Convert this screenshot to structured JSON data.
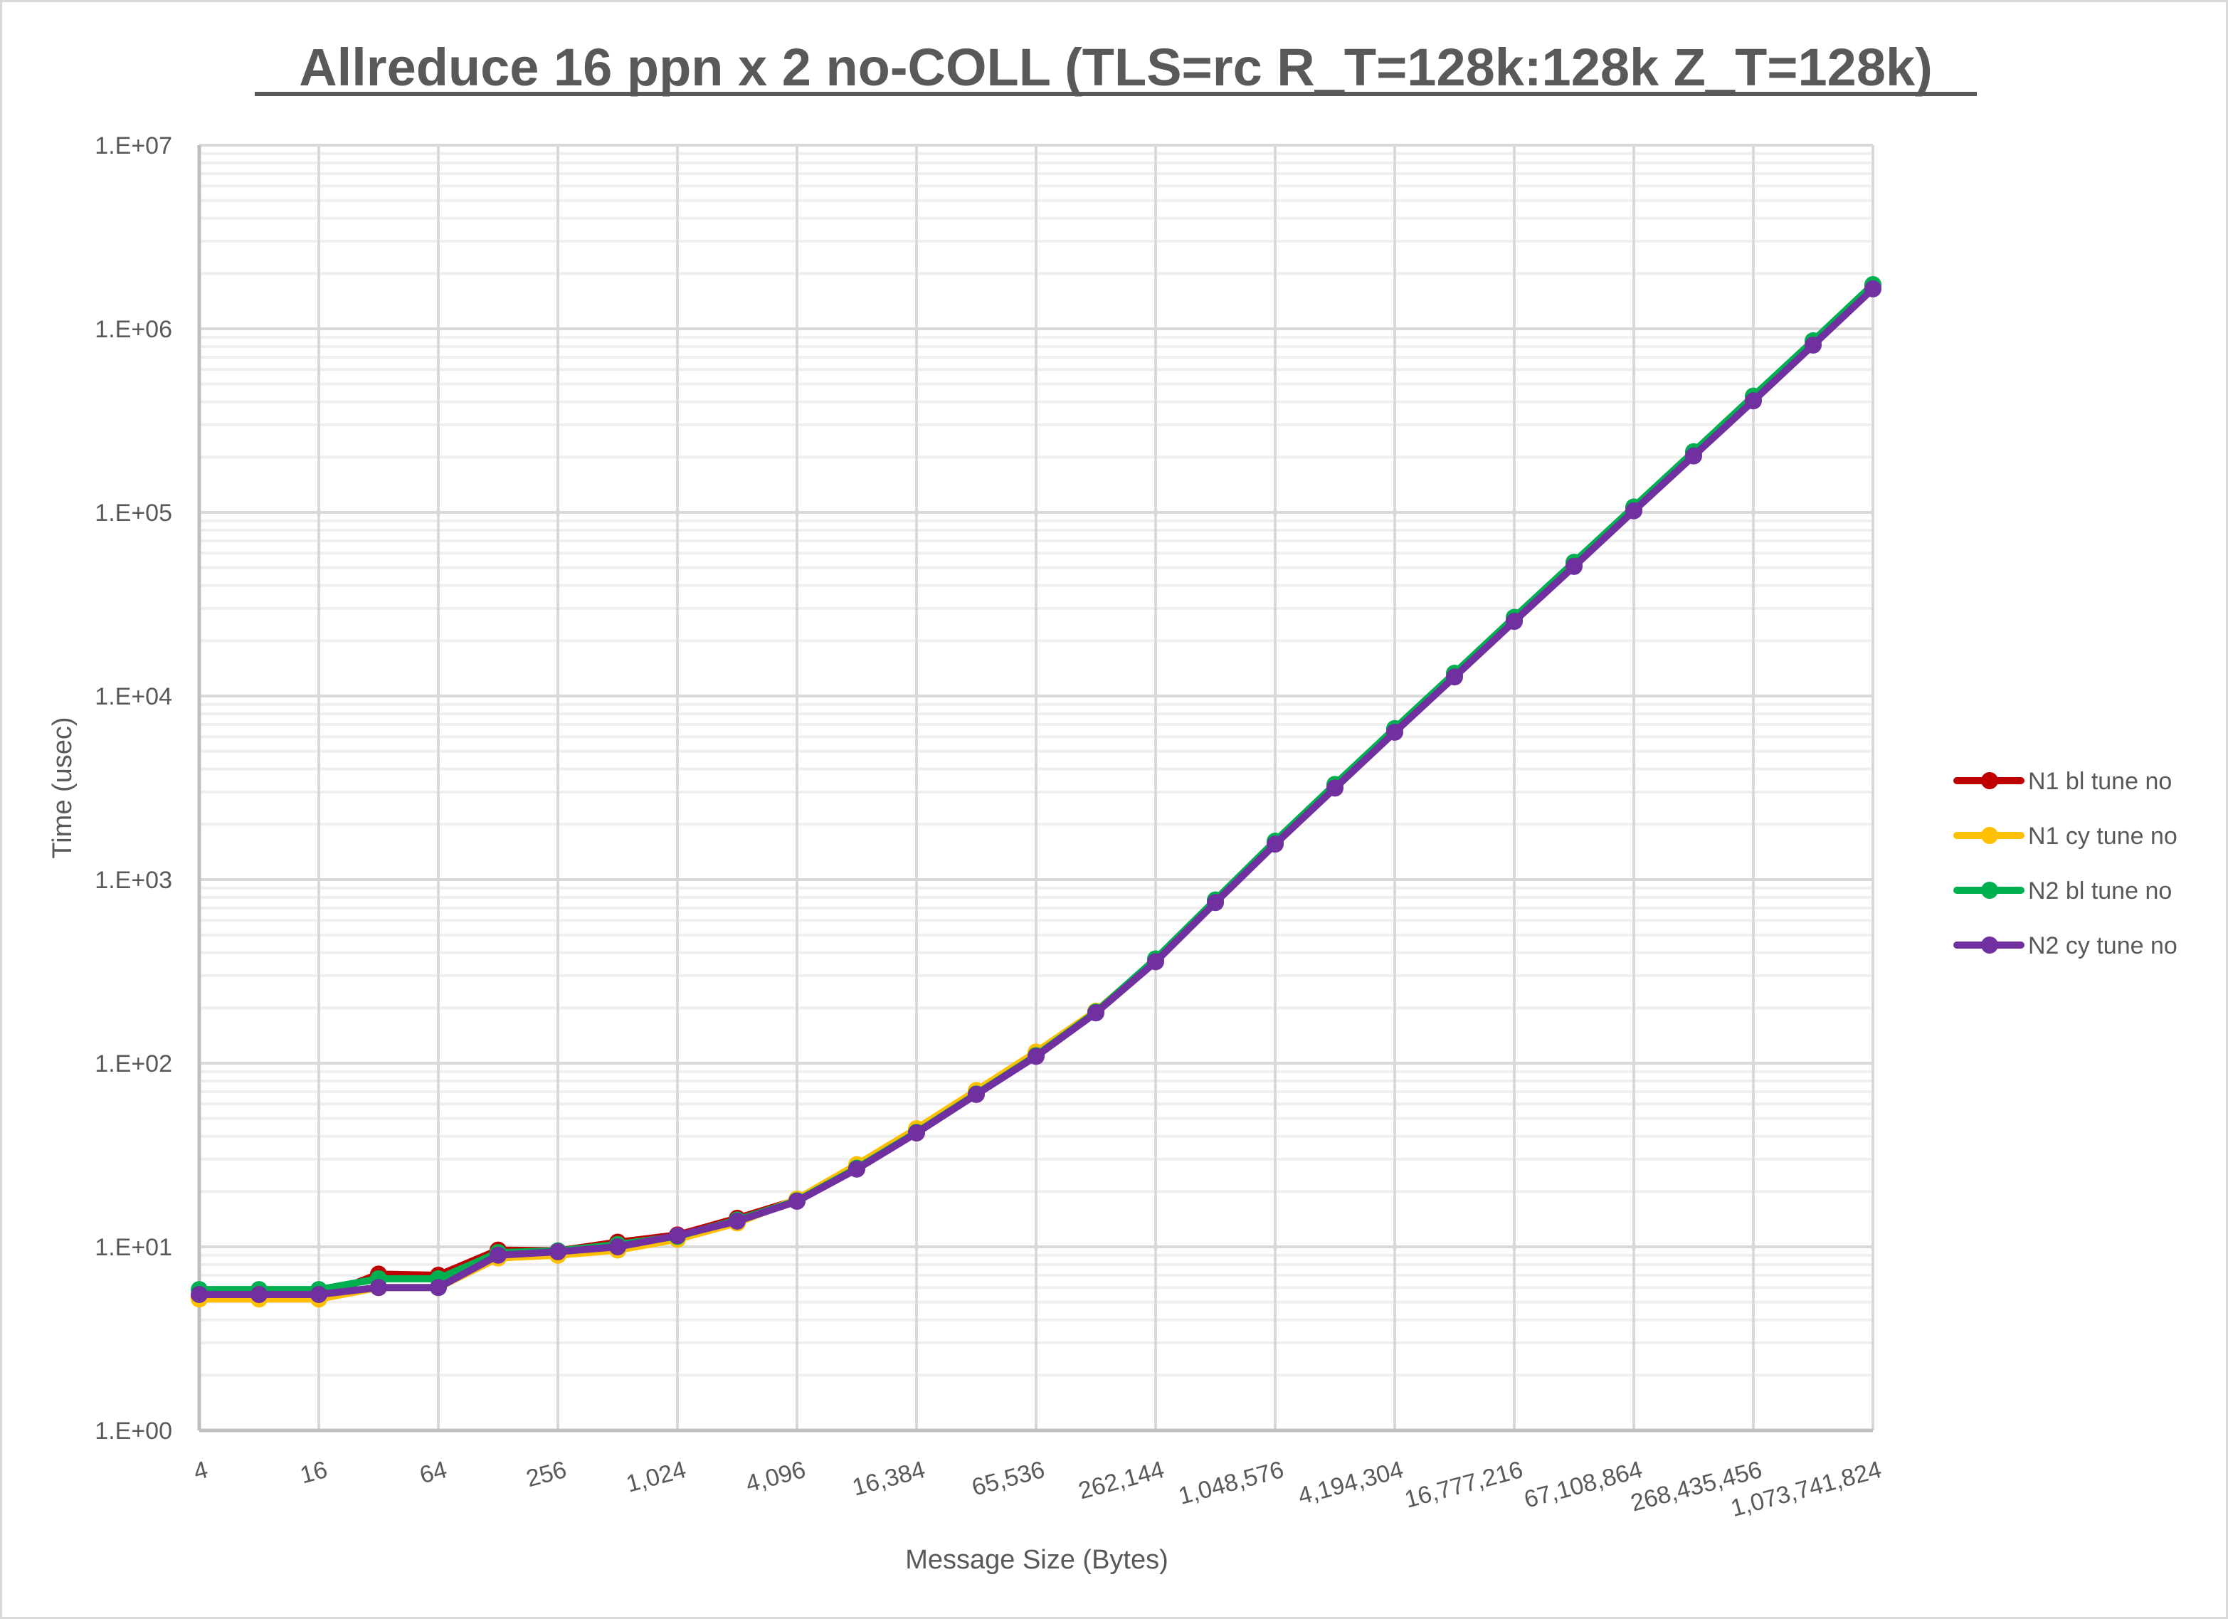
{
  "chart_data": {
    "type": "line",
    "title": "Allreduce 16 ppn x 2 no-COLL (TLS=rc R_T=128k:128k Z_T=128k)",
    "xlabel": "Message Size (Bytes)",
    "ylabel": "Time (usec)",
    "x_scale": "log2",
    "y_scale": "log10",
    "ylim": [
      1,
      10000000
    ],
    "grid": true,
    "legend_position": "right",
    "y_tick_labels": [
      "1.E+00",
      "1.E+01",
      "1.E+02",
      "1.E+03",
      "1.E+04",
      "1.E+05",
      "1.E+06",
      "1.E+07"
    ],
    "x_tick_labels": [
      "4",
      "16",
      "64",
      "256",
      "1,024",
      "4,096",
      "16,384",
      "65,536",
      "262,144",
      "1,048,576",
      "4,194,304",
      "16,777,216",
      "67,108,864",
      "268,435,456",
      "1,073,741,824"
    ],
    "x": [
      4,
      8,
      16,
      32,
      64,
      128,
      256,
      512,
      1024,
      2048,
      4096,
      8192,
      16384,
      32768,
      65536,
      131072,
      262144,
      524288,
      1048576,
      2097152,
      4194304,
      8388608,
      16777216,
      33554432,
      67108864,
      134217728,
      268435456,
      536870912,
      1073741824
    ],
    "series": [
      {
        "name": "N1 bl tune no",
        "color": "#C00000",
        "values": [
          5.3,
          5.3,
          5.3,
          7.1,
          7.0,
          9.6,
          9.5,
          10.6,
          11.6,
          14.3,
          18.0,
          27.0,
          42.5,
          68.5,
          111,
          190,
          365,
          770,
          1600,
          3250,
          6600,
          13200,
          26500,
          53000,
          106000,
          212000,
          425000,
          850000,
          1720000
        ]
      },
      {
        "name": "N1 cy tune no",
        "color": "#FFC000",
        "values": [
          5.2,
          5.2,
          5.2,
          6.0,
          6.0,
          8.7,
          9.0,
          9.6,
          11.0,
          13.5,
          18.2,
          28.0,
          44.0,
          71.0,
          115,
          192,
          365,
          760,
          1580,
          3200,
          6450,
          12900,
          25800,
          51500,
          103000,
          206000,
          412000,
          825000,
          1660000
        ]
      },
      {
        "name": "N2 bl tune no",
        "color": "#00B050",
        "values": [
          5.85,
          5.85,
          5.85,
          6.7,
          6.7,
          9.3,
          9.5,
          10.3,
          11.4,
          14.0,
          17.8,
          26.8,
          42.0,
          68.0,
          110,
          190,
          370,
          775,
          1620,
          3300,
          6650,
          13300,
          26800,
          53500,
          107000,
          214000,
          430000,
          860000,
          1740000
        ]
      },
      {
        "name": "N2 cy tune no",
        "color": "#7030A0",
        "values": [
          5.5,
          5.5,
          5.5,
          6.0,
          6.0,
          9.0,
          9.4,
          10.0,
          11.5,
          13.8,
          17.7,
          26.5,
          41.7,
          67.6,
          109,
          188,
          357,
          750,
          1560,
          3150,
          6350,
          12700,
          25500,
          50800,
          102000,
          203000,
          405000,
          815000,
          1650000
        ]
      }
    ]
  }
}
